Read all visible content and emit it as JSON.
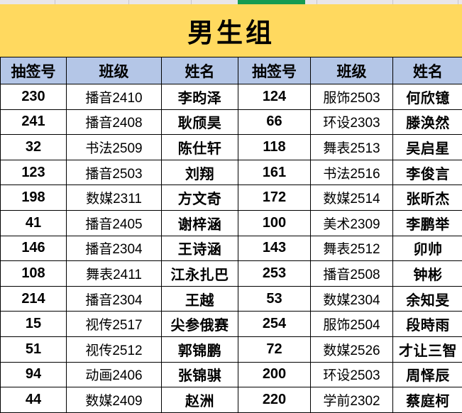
{
  "sheet": {
    "selected_column_indicator": "green-underline",
    "title": "男生组",
    "table": {
      "columns": [
        "抽签号",
        "班级",
        "姓名",
        "抽签号",
        "班级",
        "姓名"
      ],
      "rows": [
        [
          "230",
          "播音2410",
          "李昀泽",
          "124",
          "服饰2503",
          "何欣镱"
        ],
        [
          "241",
          "播音2408",
          "耿颀昊",
          "66",
          "环设2303",
          "滕涣然"
        ],
        [
          "32",
          "书法2509",
          "陈仕轩",
          "118",
          "舞表2513",
          "吴启星"
        ],
        [
          "123",
          "播音2503",
          "刘翔",
          "161",
          "书法2516",
          "李俊言"
        ],
        [
          "198",
          "数媒2311",
          "方文奇",
          "172",
          "数媒2514",
          "张昕杰"
        ],
        [
          "41",
          "播音2405",
          "谢梓涵",
          "100",
          "美术2309",
          "李鹏举"
        ],
        [
          "146",
          "播音2304",
          "王诗涵",
          "143",
          "舞表2512",
          "卯帅"
        ],
        [
          "108",
          "舞表2411",
          "江永扎巴",
          "253",
          "播音2508",
          "钟彬"
        ],
        [
          "214",
          "播音2304",
          "王越",
          "53",
          "数媒2304",
          "余知旻"
        ],
        [
          "15",
          "视传2517",
          "尖参俄赛",
          "254",
          "服饰2504",
          "段時雨"
        ],
        [
          "51",
          "视传2512",
          "郭锦鹏",
          "72",
          "数媒2526",
          "才让三智"
        ],
        [
          "94",
          "动画2406",
          "张锦骐",
          "200",
          "环设2503",
          "周怿辰"
        ],
        [
          "44",
          "数媒2409",
          "赵洲",
          "220",
          "学前2302",
          "蔡庭柯"
        ]
      ]
    }
  },
  "colors": {
    "title_bg": "#FFD95F",
    "header_bg": "#B4C6E7",
    "grid_line": "#000000",
    "strip_bg": "#E9E6E9",
    "strip_separator": "#C9C6C9",
    "selection_green": "#169B51"
  }
}
